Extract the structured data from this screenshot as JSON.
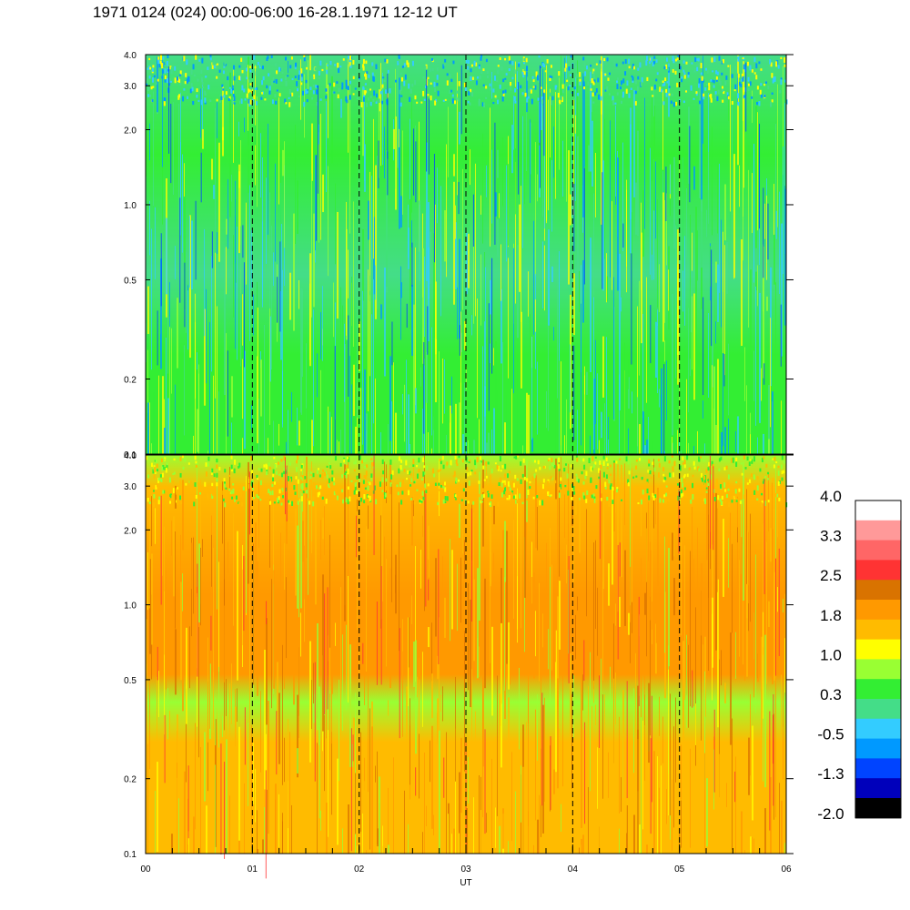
{
  "title": "1971 0124 (024) 00:00-06:00 16-28.1.1971  12-12 UT",
  "chart_data": {
    "type": "heatmap",
    "x_ticks": [
      "00",
      "01",
      "02",
      "03",
      "04",
      "05",
      "06"
    ],
    "x_range": [
      0,
      6
    ],
    "x_unit": "hours",
    "xlabel": "UT",
    "panels": [
      {
        "id": "upper",
        "y_ticks": [
          "4.0",
          "3.0",
          "2.0",
          "1.0",
          "0.5",
          "0.2",
          "0.1"
        ],
        "y_tick_values": [
          4.0,
          3.0,
          2.0,
          1.0,
          0.5,
          0.2,
          0.1
        ],
        "y_range": [
          0.1,
          4.0
        ],
        "y_scale": "log",
        "dominant_levels": [
          "0.3",
          "1.0"
        ],
        "dashed_gridlines_at_hours": [
          1,
          2,
          3,
          4,
          5
        ]
      },
      {
        "id": "lower",
        "y_ticks": [
          "4.0",
          "3.0",
          "2.0",
          "1.0",
          "0.5",
          "0.2",
          "0.1"
        ],
        "y_tick_values": [
          4.0,
          3.0,
          2.0,
          1.0,
          0.5,
          0.2,
          0.1
        ],
        "y_range": [
          0.1,
          4.0
        ],
        "y_scale": "log",
        "dominant_levels": [
          "1.0",
          "1.8",
          "2.5"
        ],
        "dashed_gridlines_at_hours": [
          1,
          2,
          3,
          4,
          5
        ]
      }
    ],
    "colorbar": {
      "labels": [
        "4.0",
        "3.3",
        "2.5",
        "1.8",
        "1.0",
        "0.3",
        "-0.5",
        "-1.3",
        "-2.0"
      ],
      "colors": [
        "#ffffff",
        "#ff9999",
        "#ff6666",
        "#ff3333",
        "#d97300",
        "#ff9900",
        "#ffbb00",
        "#ffff00",
        "#99ff33",
        "#33ee33",
        "#44dd88",
        "#33ccff",
        "#0099ff",
        "#0044ff",
        "#0000bb",
        "#000000"
      ]
    }
  }
}
